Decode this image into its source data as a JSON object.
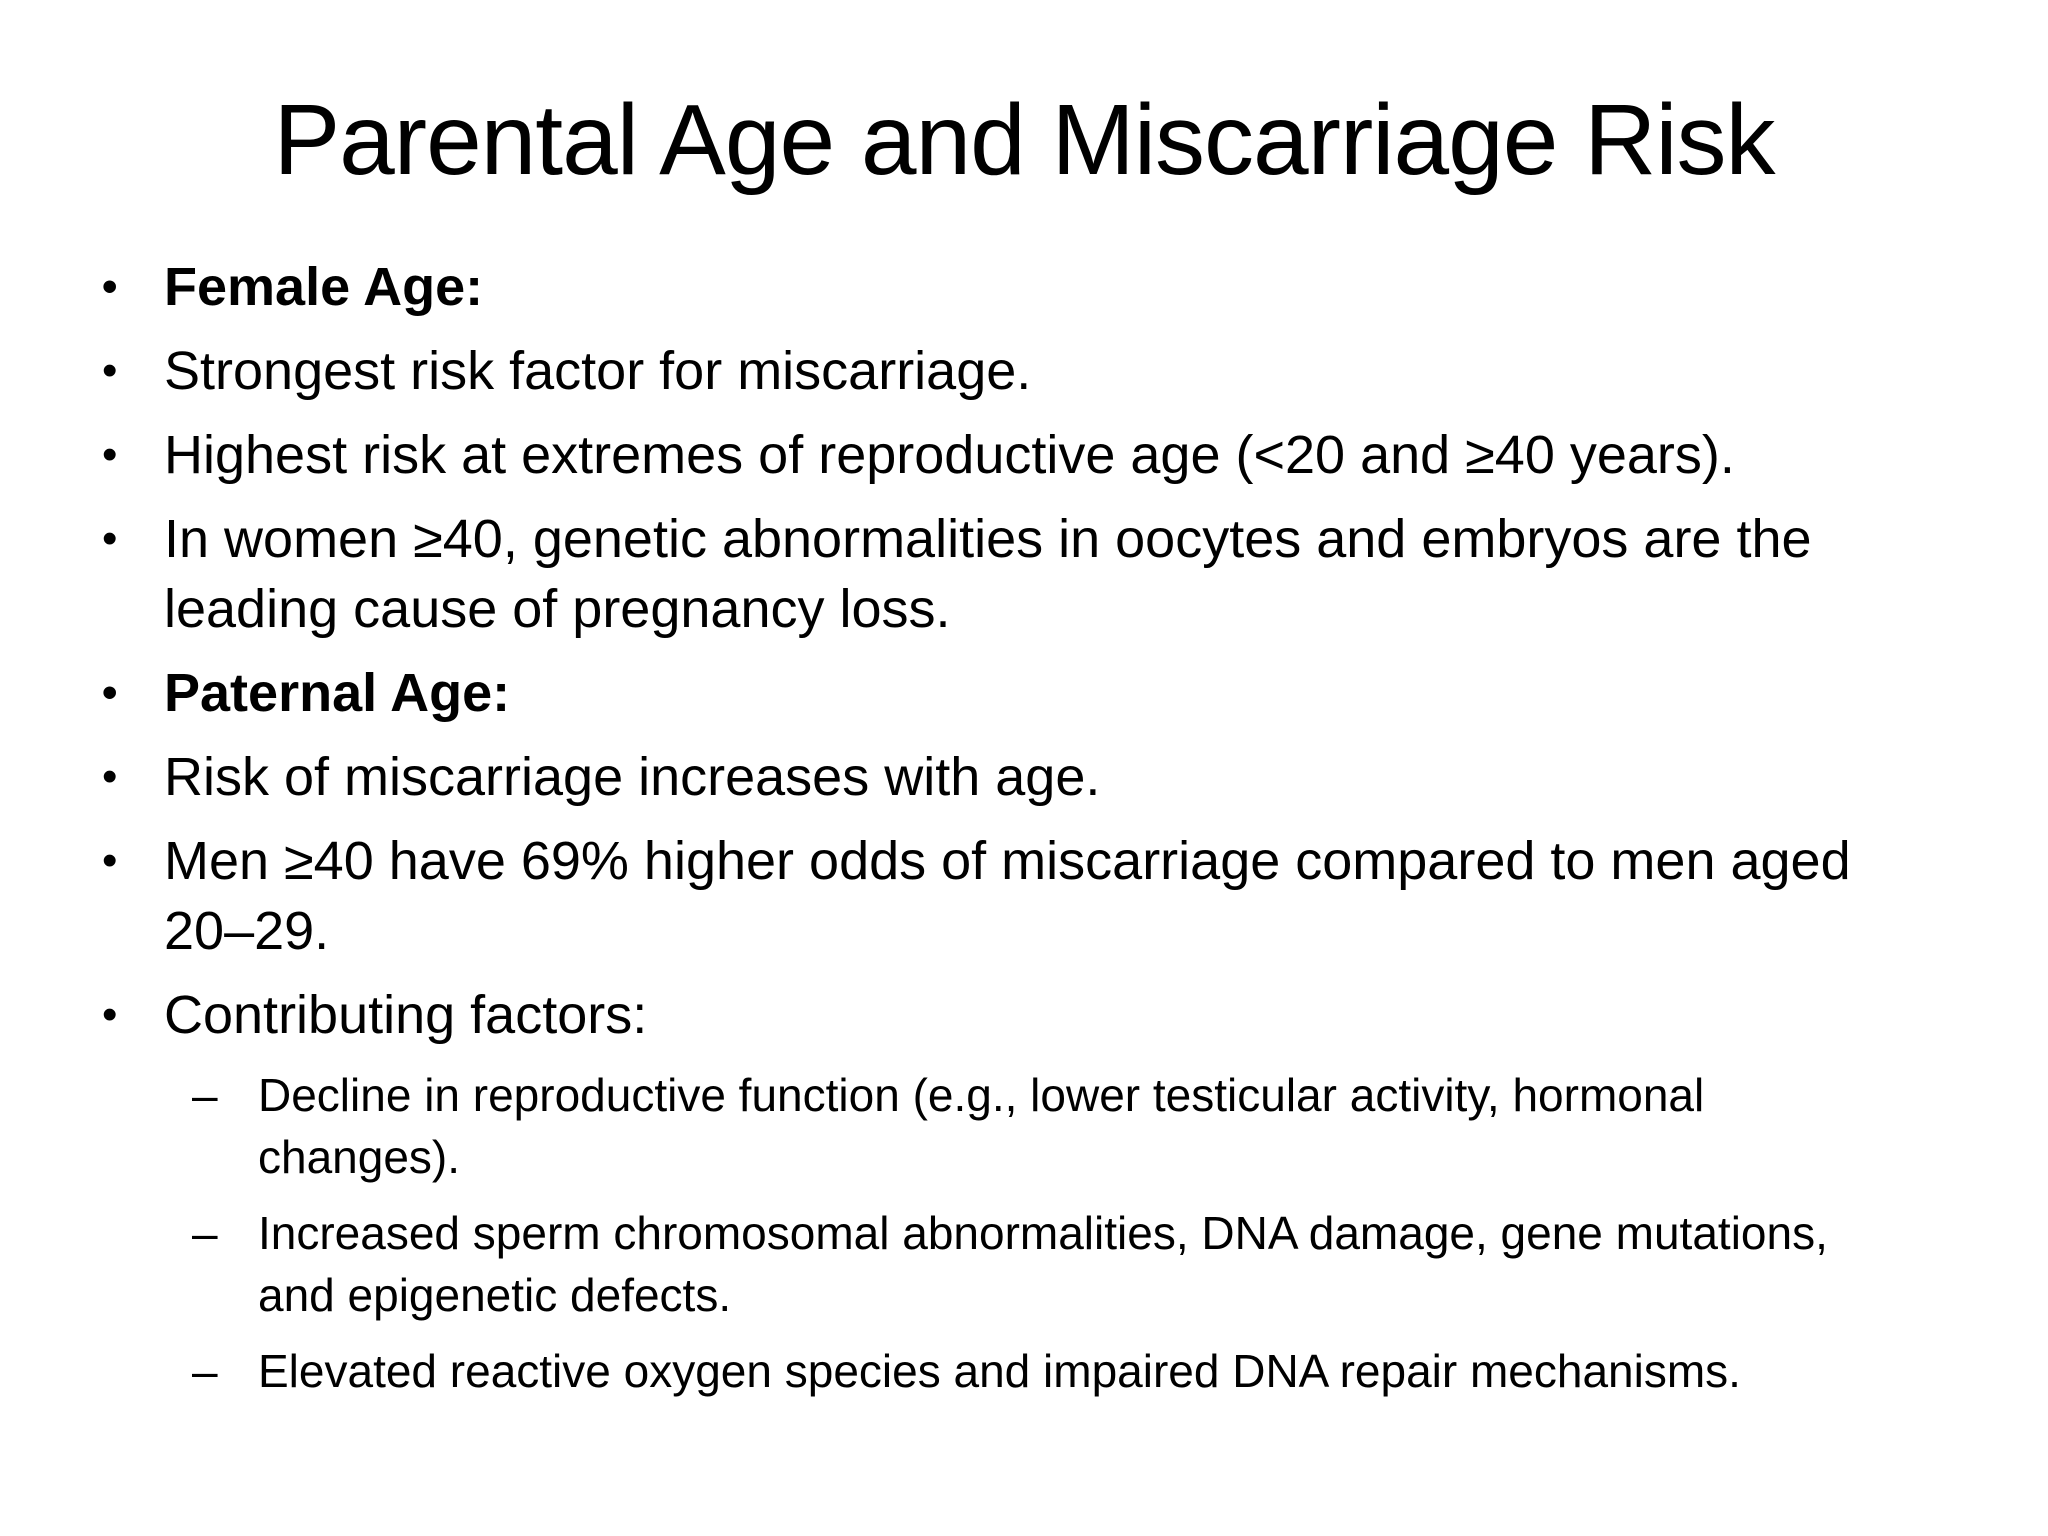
{
  "slide": {
    "title": "Parental Age and Miscarriage Risk",
    "markers": {
      "level1": "•",
      "level2": "–"
    },
    "colors": {
      "background": "#ffffff",
      "text": "#000000"
    },
    "bullets": [
      {
        "level": 1,
        "style": "bold",
        "lines": [
          "Female Age:"
        ]
      },
      {
        "level": 1,
        "style": "normal",
        "lines": [
          "Strongest risk factor for miscarriage."
        ]
      },
      {
        "level": 1,
        "style": "normal",
        "lines": [
          "Highest risk at extremes of reproductive age (<20 and ≥40 years)."
        ]
      },
      {
        "level": 1,
        "style": "normal",
        "lines": [
          "In women ≥40, genetic abnormalities in oocytes and embryos are the",
          "leading cause of pregnancy loss."
        ]
      },
      {
        "level": 1,
        "style": "bold",
        "lines": [
          "Paternal Age:"
        ]
      },
      {
        "level": 1,
        "style": "normal",
        "lines": [
          "Risk of miscarriage increases with age."
        ]
      },
      {
        "level": 1,
        "style": "normal",
        "lines": [
          "Men ≥40 have 69% higher odds of miscarriage compared to men aged",
          "20–29."
        ]
      },
      {
        "level": 1,
        "style": "normal",
        "lines": [
          "Contributing factors:"
        ]
      },
      {
        "level": 2,
        "style": "sub",
        "lines": [
          "Decline in reproductive function (e.g., lower testicular activity, hormonal",
          "changes)."
        ]
      },
      {
        "level": 2,
        "style": "sub",
        "lines": [
          "Increased sperm chromosomal abnormalities, DNA damage, gene mutations,",
          "and epigenetic defects."
        ]
      },
      {
        "level": 2,
        "style": "sub",
        "lines": [
          "Elevated reactive oxygen species and impaired DNA repair mechanisms."
        ]
      }
    ]
  }
}
